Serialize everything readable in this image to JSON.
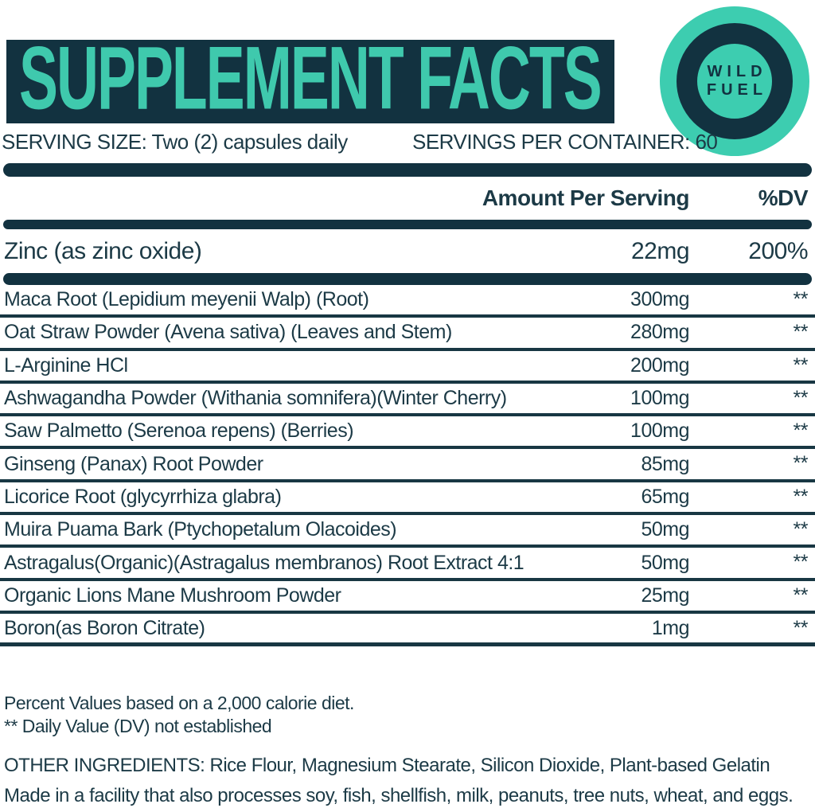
{
  "header": {
    "title": "SUPPLEMENT FACTS"
  },
  "logo": {
    "line1": "WILD",
    "line2": "FUEL"
  },
  "serving": {
    "size_label": "SERVING SIZE: Two (2) capsules daily",
    "per_container": "SERVINGS PER CONTAINER: 60"
  },
  "table": {
    "amount_header": "Amount Per Serving",
    "dv_header": "%DV",
    "primary_row": {
      "name": "Zinc (as zinc oxide)",
      "amount": "22mg",
      "dv": "200%"
    },
    "rows": [
      {
        "name": "Maca Root (Lepidium meyenii Walp) (Root)",
        "amount": "300mg",
        "dv": "**"
      },
      {
        "name": "Oat Straw Powder (Avena sativa) (Leaves and Stem)",
        "amount": "280mg",
        "dv": "**"
      },
      {
        "name": "L-Arginine HCl",
        "amount": "200mg",
        "dv": "**"
      },
      {
        "name": "Ashwagandha Powder (Withania somnifera)(Winter Cherry)",
        "amount": "100mg",
        "dv": "**"
      },
      {
        "name": "Saw Palmetto (Serenoa repens) (Berries)",
        "amount": "100mg",
        "dv": "**"
      },
      {
        "name": "Ginseng (Panax) Root Powder",
        "amount": "85mg",
        "dv": "**"
      },
      {
        "name": "Licorice Root (glycyrrhiza glabra)",
        "amount": "65mg",
        "dv": "**"
      },
      {
        "name": "Muira Puama Bark (Ptychopetalum Olacoides)",
        "amount": "50mg",
        "dv": "**"
      },
      {
        "name": "Astragalus(Organic)(Astragalus membranos) Root Extract 4:1",
        "amount": "50mg",
        "dv": "**"
      },
      {
        "name": "Organic Lions Mane Mushroom Powder",
        "amount": "25mg",
        "dv": "**"
      },
      {
        "name": "Boron(as Boron Citrate)",
        "amount": "1mg",
        "dv": "**"
      }
    ]
  },
  "footnotes": {
    "percent_values": "Percent Values based on a 2,000 calorie diet.",
    "dv_note": "** Daily Value (DV) not established",
    "other_ingredients": "OTHER INGREDIENTS: Rice Flour, Magnesium Stearate, Silicon Dioxide, Plant-based Gelatin",
    "allergen": "Made in a facility that also processes soy, fish, shellfish, milk, peanuts, tree nuts, wheat, and eggs."
  },
  "colors": {
    "navy": "#123240",
    "teal": "#3fc9ad",
    "text": "#1c3a46"
  }
}
